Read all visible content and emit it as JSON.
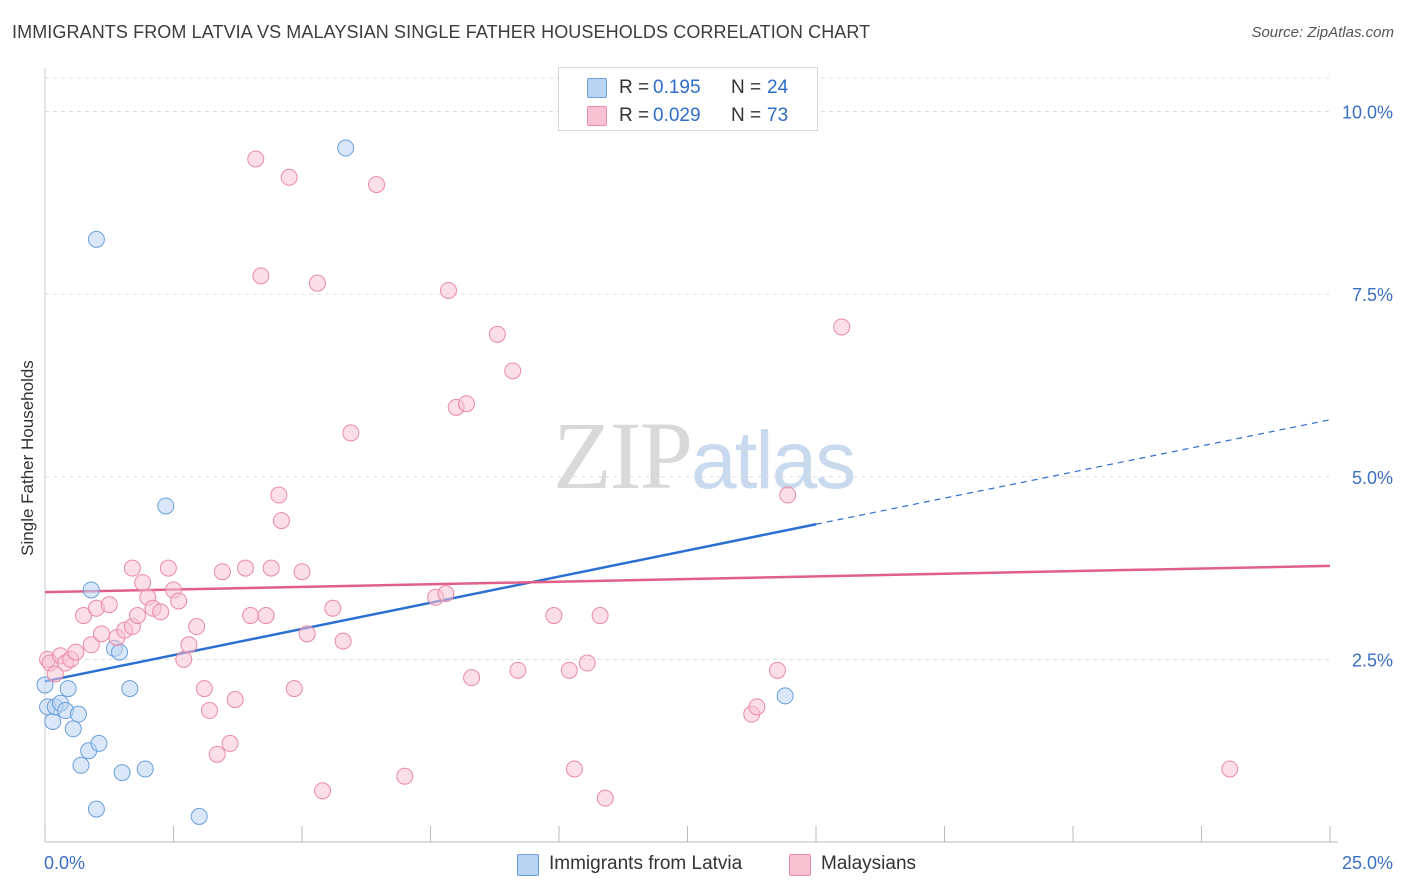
{
  "header": {
    "title": "IMMIGRANTS FROM LATVIA VS MALAYSIAN SINGLE FATHER HOUSEHOLDS CORRELATION CHART",
    "source": "Source: ZipAtlas.com"
  },
  "watermark": {
    "zip": "ZIP",
    "atlas": "atlas"
  },
  "legend_top": {
    "rows": [
      {
        "r_label": "R =",
        "r_value": "0.195",
        "n_label": "N =",
        "n_value": "24"
      },
      {
        "r_label": "R =",
        "r_value": "0.029",
        "n_label": "N =",
        "n_value": "73"
      }
    ]
  },
  "legend_bottom": {
    "items": [
      {
        "label": "Immigrants from Latvia"
      },
      {
        "label": "Malaysians"
      }
    ]
  },
  "colors": {
    "blue_fill": "#b9d3f3",
    "blue_stroke": "#6a9fdc",
    "blue_line": "#2a6fd1",
    "pink_fill": "#f7c3d3",
    "pink_stroke": "#e98aa8",
    "pink_line": "#e0608a",
    "axis_text": "#3a6fc2",
    "grid": "#dddddd"
  },
  "chart_data": {
    "type": "scatter",
    "title": "IMMIGRANTS FROM LATVIA VS MALAYSIAN SINGLE FATHER HOUSEHOLDS CORRELATION CHART",
    "xlabel": "",
    "ylabel": "Single Father Households",
    "xlim": [
      0,
      25
    ],
    "ylim": [
      0,
      10.5
    ],
    "x_tick_labels": [
      "0.0%",
      "25.0%"
    ],
    "y_ticks": [
      2.5,
      5.0,
      7.5,
      10.0
    ],
    "y_tick_labels": [
      "2.5%",
      "5.0%",
      "7.5%",
      "10.0%"
    ],
    "grid": true,
    "series": [
      {
        "name": "Immigrants from Latvia",
        "color": "blue",
        "points": [
          [
            0.0,
            2.15
          ],
          [
            0.05,
            1.85
          ],
          [
            0.15,
            1.65
          ],
          [
            0.2,
            1.85
          ],
          [
            0.3,
            1.9
          ],
          [
            0.4,
            1.8
          ],
          [
            0.45,
            2.1
          ],
          [
            0.55,
            1.55
          ],
          [
            0.65,
            1.75
          ],
          [
            0.7,
            1.05
          ],
          [
            0.85,
            1.25
          ],
          [
            0.9,
            3.45
          ],
          [
            1.0,
            0.45
          ],
          [
            1.0,
            8.25
          ],
          [
            1.05,
            1.35
          ],
          [
            1.35,
            2.65
          ],
          [
            1.45,
            2.6
          ],
          [
            1.5,
            0.95
          ],
          [
            1.65,
            2.1
          ],
          [
            1.95,
            1.0
          ],
          [
            2.35,
            4.6
          ],
          [
            3.0,
            0.35
          ],
          [
            5.85,
            9.5
          ],
          [
            14.4,
            2.0
          ]
        ],
        "trend": {
          "x0": 0.0,
          "y0": 2.2,
          "x1": 15.0,
          "y1": 4.35,
          "x_dash_end": 25.0,
          "y_dash_end": 5.78
        }
      },
      {
        "name": "Malaysians",
        "color": "pink",
        "points": [
          [
            0.05,
            2.5
          ],
          [
            0.1,
            2.45
          ],
          [
            0.2,
            2.3
          ],
          [
            0.3,
            2.55
          ],
          [
            0.4,
            2.45
          ],
          [
            0.5,
            2.5
          ],
          [
            0.6,
            2.6
          ],
          [
            0.75,
            3.1
          ],
          [
            0.9,
            2.7
          ],
          [
            1.0,
            3.2
          ],
          [
            1.1,
            2.85
          ],
          [
            1.25,
            3.25
          ],
          [
            1.4,
            2.8
          ],
          [
            1.55,
            2.9
          ],
          [
            1.7,
            2.95
          ],
          [
            1.7,
            3.75
          ],
          [
            1.8,
            3.1
          ],
          [
            1.9,
            3.55
          ],
          [
            2.0,
            3.35
          ],
          [
            2.1,
            3.2
          ],
          [
            2.25,
            3.15
          ],
          [
            2.4,
            3.75
          ],
          [
            2.5,
            3.45
          ],
          [
            2.6,
            3.3
          ],
          [
            2.7,
            2.5
          ],
          [
            2.8,
            2.7
          ],
          [
            2.95,
            2.95
          ],
          [
            3.1,
            2.1
          ],
          [
            3.2,
            1.8
          ],
          [
            3.35,
            1.2
          ],
          [
            3.45,
            3.7
          ],
          [
            3.6,
            1.35
          ],
          [
            3.7,
            1.95
          ],
          [
            3.9,
            3.75
          ],
          [
            4.0,
            3.1
          ],
          [
            4.1,
            9.35
          ],
          [
            4.2,
            7.75
          ],
          [
            4.3,
            3.1
          ],
          [
            4.4,
            3.75
          ],
          [
            4.55,
            4.75
          ],
          [
            4.6,
            4.4
          ],
          [
            4.75,
            9.1
          ],
          [
            4.85,
            2.1
          ],
          [
            5.0,
            3.7
          ],
          [
            5.1,
            2.85
          ],
          [
            5.3,
            7.65
          ],
          [
            5.4,
            0.7
          ],
          [
            5.6,
            3.2
          ],
          [
            5.8,
            2.75
          ],
          [
            5.95,
            5.6
          ],
          [
            6.45,
            9.0
          ],
          [
            7.0,
            0.9
          ],
          [
            7.6,
            3.35
          ],
          [
            7.8,
            3.4
          ],
          [
            7.85,
            7.55
          ],
          [
            8.0,
            5.95
          ],
          [
            8.2,
            6.0
          ],
          [
            8.3,
            2.25
          ],
          [
            8.8,
            6.95
          ],
          [
            9.1,
            6.45
          ],
          [
            9.2,
            2.35
          ],
          [
            9.9,
            3.1
          ],
          [
            10.2,
            2.35
          ],
          [
            10.3,
            1.0
          ],
          [
            10.55,
            2.45
          ],
          [
            10.8,
            3.1
          ],
          [
            10.9,
            0.6
          ],
          [
            13.75,
            1.75
          ],
          [
            13.85,
            1.85
          ],
          [
            14.25,
            2.35
          ],
          [
            14.45,
            4.75
          ],
          [
            15.5,
            7.05
          ],
          [
            23.05,
            1.0
          ]
        ],
        "trend": {
          "x0": 0.0,
          "y0": 3.42,
          "x1": 25.0,
          "y1": 3.78
        }
      }
    ]
  }
}
